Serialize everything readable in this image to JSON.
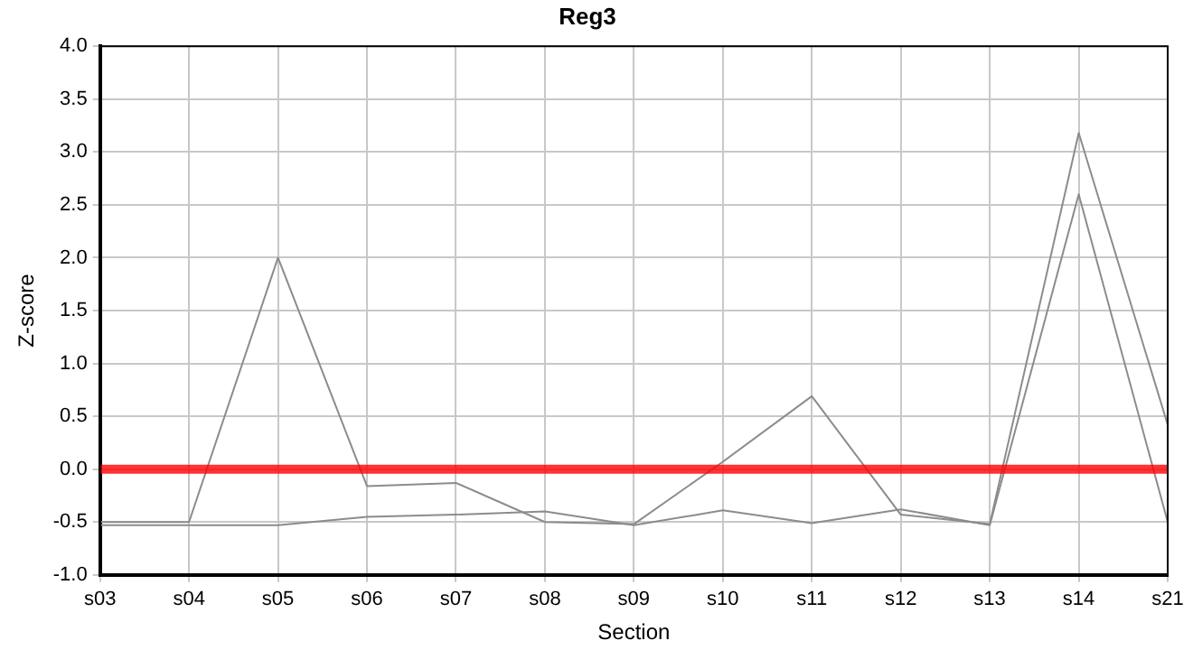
{
  "chart_data": {
    "type": "line",
    "title": "Reg3",
    "xlabel": "Section",
    "ylabel": "Z-score",
    "categories": [
      "s03",
      "s04",
      "s05",
      "s06",
      "s07",
      "s08",
      "s09",
      "s10",
      "s11",
      "s12",
      "s13",
      "s14",
      "s21"
    ],
    "series": [
      {
        "color": "#8c8c8c",
        "values": [
          -0.5,
          -0.5,
          2.0,
          -0.16,
          -0.13,
          -0.5,
          -0.52,
          0.07,
          0.69,
          -0.43,
          -0.52,
          3.18,
          0.42
        ]
      },
      {
        "color": "#8c8c8c",
        "values": [
          -0.53,
          -0.53,
          -0.53,
          -0.45,
          -0.43,
          -0.4,
          -0.53,
          -0.39,
          -0.51,
          -0.38,
          -0.53,
          2.6,
          -0.5
        ]
      }
    ],
    "ylim": [
      -1,
      4
    ],
    "yticks": [
      {
        "value": -1,
        "label": "-1.0"
      },
      {
        "value": -0.5,
        "label": "-0.5"
      },
      {
        "value": 0,
        "label": "0.0"
      },
      {
        "value": 0.5,
        "label": "0.5"
      },
      {
        "value": 1,
        "label": "1.0"
      },
      {
        "value": 1.5,
        "label": "1.5"
      },
      {
        "value": 2,
        "label": "2.0"
      },
      {
        "value": 2.5,
        "label": "2.5"
      },
      {
        "value": 3,
        "label": "3.0"
      },
      {
        "value": 3.5,
        "label": "3.5"
      },
      {
        "value": 4,
        "label": "4.0"
      }
    ],
    "ref_lines": [
      {
        "axis": "y",
        "value": 0,
        "color": "#ff0000"
      }
    ],
    "grid": true,
    "legend": false,
    "marker": "none",
    "line_style": "solid"
  }
}
